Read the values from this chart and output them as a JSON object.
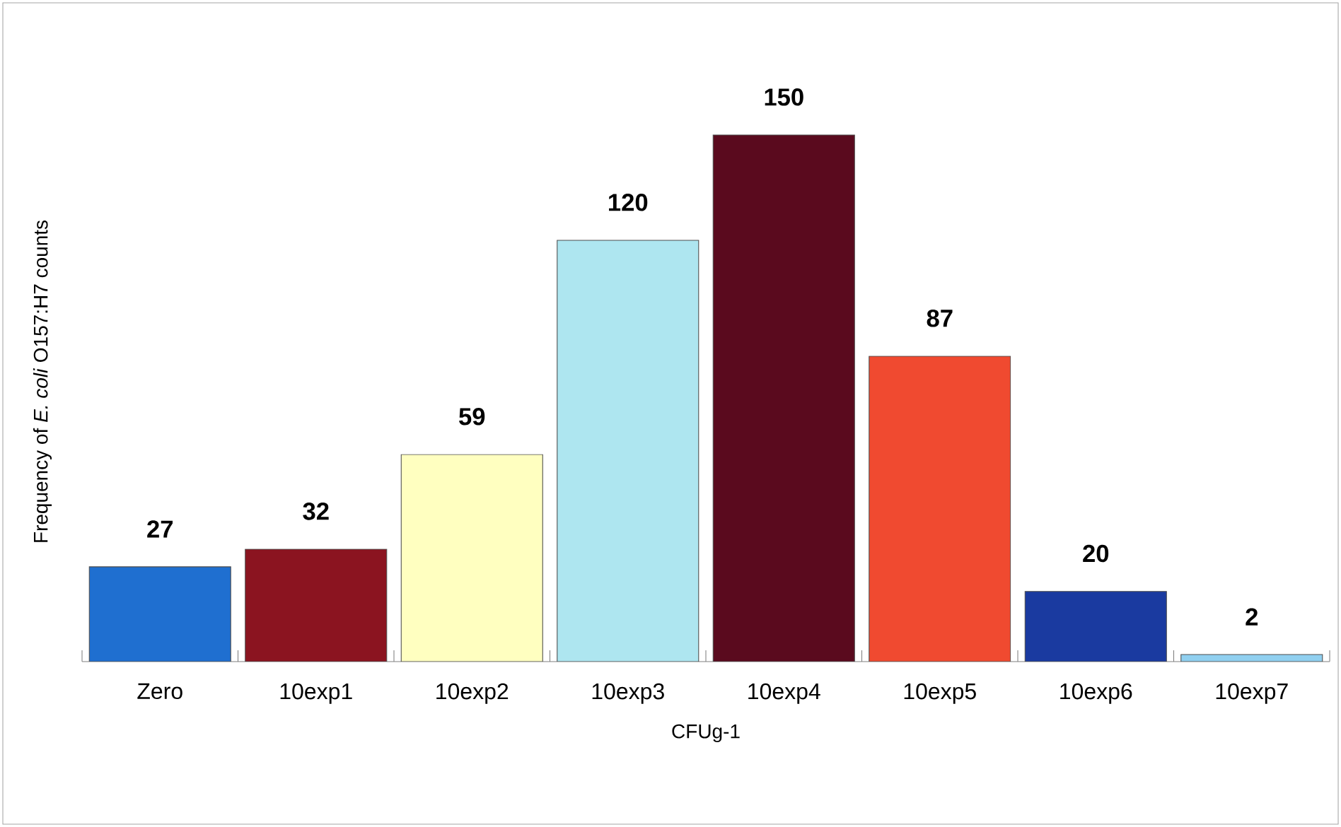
{
  "chart_data": {
    "type": "bar",
    "xlabel": "CFUg-1",
    "ylabel": "Frequency of *E. coli* O157:H7 counts",
    "categories": [
      "Zero",
      "10exp1",
      "10exp2",
      "10exp3",
      "10exp4",
      "10exp5",
      "10exp6",
      "10exp7"
    ],
    "values": [
      27,
      32,
      59,
      120,
      150,
      87,
      20,
      2
    ],
    "colors": [
      "#1f6fd0",
      "#8b1420",
      "#ffffc0",
      "#aee6f0",
      "#5a0a1e",
      "#f04a30",
      "#1a3aa0",
      "#90d0f0"
    ],
    "data_labels": true
  }
}
